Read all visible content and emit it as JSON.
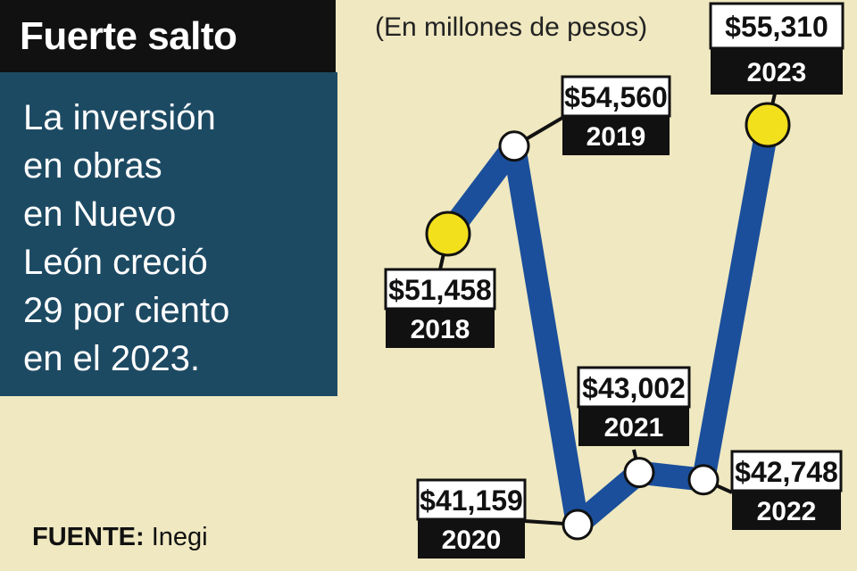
{
  "title": "Fuerte salto",
  "description": "La inversión\nen obras\nen Nuevo\nLeón creció\n29 por ciento\nen el 2023.",
  "unit_note": "(En millones de pesos)",
  "source": {
    "label": "FUENTE:",
    "value": "Inegi"
  },
  "colors": {
    "line": "#1b4f9c",
    "highlight_marker": "#f2e01c",
    "normal_marker": "#ffffff",
    "background": "#efe8c0",
    "panel": "#1d4a63"
  },
  "chart_data": {
    "type": "line",
    "x": [
      "2018",
      "2019",
      "2020",
      "2021",
      "2022",
      "2023"
    ],
    "values": [
      51458,
      54560,
      41159,
      43002,
      42748,
      55310
    ],
    "labels": [
      "$51,458",
      "$54,560",
      "$41,159",
      "$43,002",
      "$42,748",
      "$55,310"
    ],
    "highlighted": [
      "2018",
      "2023"
    ],
    "grid": false,
    "ylim": [
      41159,
      55310
    ]
  }
}
